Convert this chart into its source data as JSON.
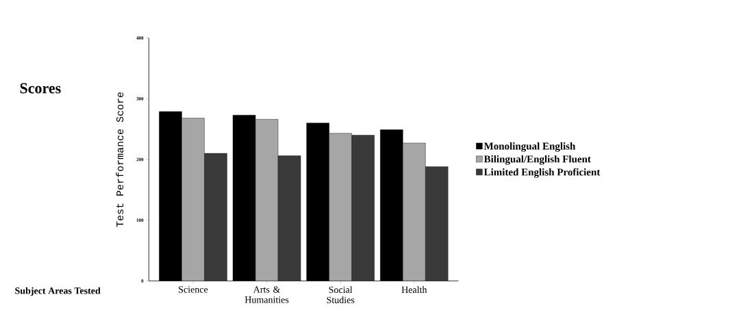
{
  "chart_data": {
    "type": "bar",
    "title": "Scores",
    "xlabel": "Subject Areas Tested",
    "ylabel": "Test Performance Score",
    "categories": [
      "Science",
      "Arts & Humanities",
      "Social Studies",
      "Health"
    ],
    "series": [
      {
        "name": "Monolingual English",
        "color": "#000000",
        "values": [
          279,
          273,
          260,
          249
        ]
      },
      {
        "name": "Bilingual/English Fluent",
        "color": "#a6a6a6",
        "values": [
          268,
          266,
          243,
          227
        ]
      },
      {
        "name": "Limited English Proficient",
        "color": "#3a3a3a",
        "values": [
          210,
          206,
          240,
          188
        ]
      }
    ],
    "ylim": [
      0,
      400
    ],
    "yticks": [
      0,
      100,
      200,
      300,
      400
    ],
    "grid": false,
    "legend": "right"
  }
}
